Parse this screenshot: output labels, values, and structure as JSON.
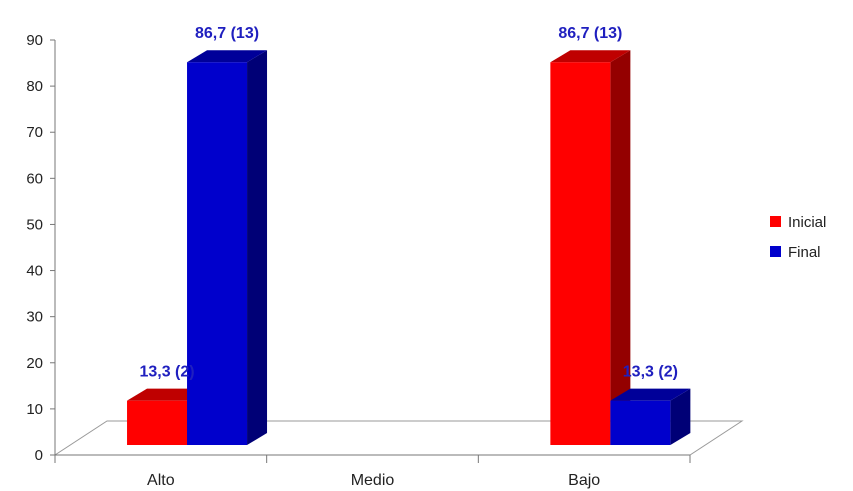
{
  "chart_data": {
    "type": "bar",
    "title": "",
    "xlabel": "",
    "ylabel": "",
    "categories": [
      "Alto",
      "Medio",
      "Bajo"
    ],
    "series": [
      {
        "name": "Inicial",
        "color": "#ff0000",
        "values": [
          13.3,
          0,
          86.7
        ],
        "labels": [
          "13,3 (2)",
          "",
          "86,7 (13)"
        ]
      },
      {
        "name": "Final",
        "color": "#0000cc",
        "values": [
          86.7,
          0,
          13.3
        ],
        "labels": [
          "86,7 (13)",
          "",
          "13,3 (2)"
        ]
      }
    ],
    "ylim": [
      0,
      90
    ],
    "yticks": [
      0,
      10,
      20,
      30,
      40,
      50,
      60,
      70,
      80,
      90
    ],
    "label_color": "#1f1fbf",
    "legend": "right",
    "grid": false,
    "style": "3d"
  }
}
